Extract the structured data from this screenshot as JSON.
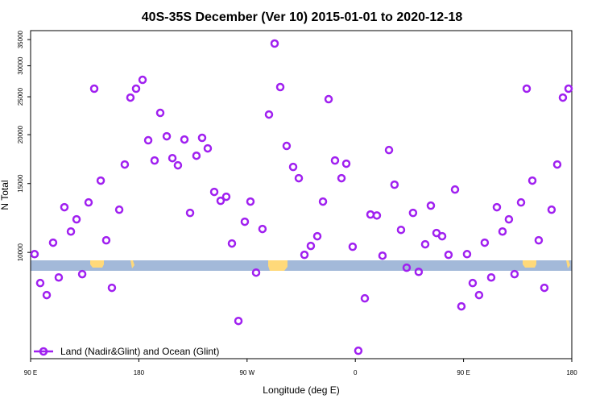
{
  "chart_data": {
    "type": "scatter",
    "title": "40S-35S December (Ver 10)   2015-01-01 to 2020-12-18",
    "x_label": "Longitude (deg E)",
    "y_label": "N Total",
    "x": [
      93.3,
      98,
      103.4,
      108.7,
      113.4,
      118.1,
      123.5,
      128.2,
      132.9,
      138.2,
      142.9,
      148.3,
      152.9,
      157.6,
      163.7,
      168.3,
      173,
      177.7,
      183.1,
      187.8,
      193.1,
      197.8,
      203.2,
      207.9,
      212.5,
      217.9,
      222.6,
      227.9,
      232.6,
      237.3,
      242.7,
      248,
      252.7,
      257.4,
      262.8,
      268.1,
      272.8,
      277.5,
      282.8,
      288.2,
      292.9,
      297.6,
      302.9,
      308.3,
      313,
      317.7,
      323,
      328.4,
      333.1,
      337.8,
      343.1,
      348.5,
      352.5,
      357.8,
      362.5,
      367.9,
      372.6,
      377.9,
      382.6,
      388,
      392.6,
      398,
      402.7,
      408,
      412.7,
      418.1,
      422.8,
      427.5,
      432.2,
      437.5,
      442.9,
      448.2,
      452.9,
      457.6,
      462.9,
      467.6,
      473,
      477.7,
      482.4,
      487.7,
      492.4,
      497.8,
      502.5,
      507.2,
      512.5,
      517.2,
      523.2,
      527.9,
      532.6,
      537.3
    ],
    "series": [
      {
        "name": "Land (Nadir&Glint) and Ocean (Glint)",
        "color": "#a020f0",
        "values": [
          9900,
          8350,
          7780,
          10590,
          8630,
          13050,
          11310,
          12150,
          8800,
          13420,
          26220,
          15260,
          10740,
          8120,
          12860,
          16780,
          24880,
          26220,
          27620,
          19350,
          17180,
          22740,
          19810,
          17420,
          16700,
          19440,
          12620,
          17670,
          19630,
          18450,
          14280,
          13550,
          13880,
          10540,
          6680,
          11980,
          13490,
          8880,
          11480,
          22520,
          34200,
          26470,
          18720,
          16540,
          15480,
          9860,
          10390,
          11000,
          13490,
          24650,
          17180,
          15480,
          16860,
          10340,
          5605,
          7630,
          12500,
          12430,
          9810,
          18270,
          14900,
          11420,
          9140,
          12620,
          8920,
          10490,
          13170,
          11210,
          11000,
          9860,
          14480,
          7280,
          9900,
          8350,
          7780,
          10590,
          8630,
          13050,
          11310,
          12150,
          8800,
          13420,
          26220,
          15260,
          10740,
          8120,
          12860,
          16780,
          24880,
          26220
        ]
      }
    ],
    "xlim": [
      90,
      540
    ],
    "xticks": [
      {
        "value": 90,
        "label": "90 E"
      },
      {
        "value": 180,
        "label": "180"
      },
      {
        "value": 270,
        "label": "90 W"
      },
      {
        "value": 360,
        "label": "0"
      },
      {
        "value": 450,
        "label": "90 E"
      },
      {
        "value": 540,
        "label": "180"
      }
    ],
    "ylim": [
      5350,
      36900
    ],
    "ylog": true,
    "yticks": [
      10000,
      15000,
      20000,
      25000,
      30000,
      35000
    ],
    "legend": "bottom-left"
  }
}
